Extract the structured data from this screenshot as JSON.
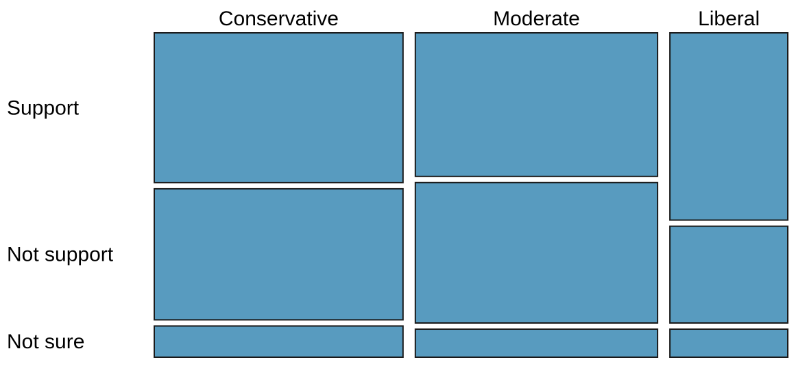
{
  "chart_data": {
    "type": "mosaic",
    "title": "",
    "xlabel": "",
    "ylabel": "",
    "columns": [
      "Conservative",
      "Moderate",
      "Liberal"
    ],
    "rows": [
      "Support",
      "Not support",
      "Not sure"
    ],
    "column_proportions": [
      0.38,
      0.37,
      0.18
    ],
    "cell_proportions": [
      [
        0.48,
        0.42,
        0.1
      ],
      [
        0.46,
        0.45,
        0.09
      ],
      [
        0.6,
        0.31,
        0.09
      ]
    ],
    "colors": {
      "tile_fill": "#589bbf",
      "tile_stroke": "#1a1a1a"
    }
  }
}
